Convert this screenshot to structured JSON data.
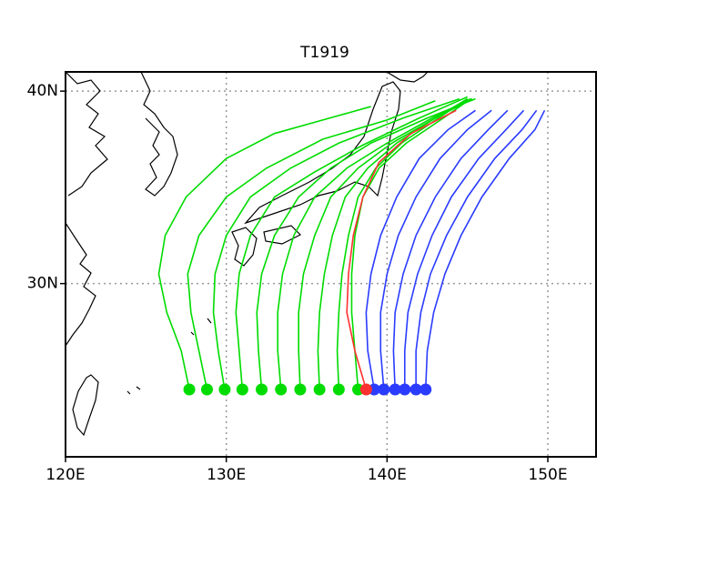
{
  "chart_data": {
    "type": "map",
    "title": "T1919",
    "xlim": [
      120,
      153
    ],
    "ylim": [
      21,
      41
    ],
    "xticks": [
      {
        "value": 120,
        "label": "120E"
      },
      {
        "value": 130,
        "label": "130E"
      },
      {
        "value": 140,
        "label": "140E"
      },
      {
        "value": 150,
        "label": "150E"
      }
    ],
    "yticks": [
      {
        "value": 30,
        "label": "30N"
      },
      {
        "value": 40,
        "label": "40N"
      }
    ],
    "grid": true,
    "series": [
      {
        "color": "#00dc00",
        "x": [
          127.7,
          127.2,
          126.3,
          125.8,
          126.2,
          127.5,
          130,
          133,
          136,
          139
        ],
        "values": [
          24.5,
          26.5,
          28.5,
          30.5,
          32.5,
          34.5,
          36.5,
          37.8,
          38.5,
          39.2
        ]
      },
      {
        "color": "#00dc00",
        "x": [
          128.8,
          128.3,
          127.8,
          127.6,
          128.3,
          130,
          132.5,
          136,
          140,
          143
        ],
        "values": [
          24.5,
          26.5,
          28.5,
          30.5,
          32.5,
          34.5,
          36,
          37.5,
          38.5,
          39.5
        ]
      },
      {
        "color": "#00dc00",
        "x": [
          129.9,
          129.5,
          129.2,
          129.3,
          130,
          131.5,
          134,
          137,
          141,
          144.5
        ],
        "values": [
          24.5,
          26.5,
          28.5,
          30.5,
          32.5,
          34.5,
          36,
          37.3,
          38.6,
          39.6
        ]
      },
      {
        "color": "#00dc00",
        "x": [
          131,
          130.8,
          130.6,
          130.8,
          131.5,
          133,
          135.5,
          138.5,
          142,
          145
        ],
        "values": [
          24.5,
          26.5,
          28.5,
          30.5,
          32.5,
          34.5,
          35.8,
          37.2,
          38.6,
          39.7
        ]
      },
      {
        "color": "#00dc00",
        "x": [
          132.2,
          132,
          131.9,
          132.2,
          133,
          134.5,
          136.5,
          139,
          142.5,
          145.5
        ],
        "values": [
          24.5,
          26.5,
          28.5,
          30.5,
          32.5,
          34.5,
          36,
          37.3,
          38.6,
          39.6
        ]
      },
      {
        "color": "#00dc00",
        "x": [
          133.4,
          133.2,
          133.2,
          133.5,
          134.2,
          135.5,
          137.5,
          140,
          142.8,
          145.2
        ],
        "values": [
          24.5,
          26.5,
          28.5,
          30.5,
          32.5,
          34.5,
          36,
          37.3,
          38.6,
          39.6
        ]
      },
      {
        "color": "#00dc00",
        "x": [
          134.6,
          134.5,
          134.5,
          134.8,
          135.5,
          136.5,
          138.2,
          140.3,
          143,
          145
        ],
        "values": [
          24.5,
          26.5,
          28.5,
          30.5,
          32.5,
          34.5,
          36,
          37.3,
          38.6,
          39.6
        ]
      },
      {
        "color": "#00dc00",
        "x": [
          135.8,
          135.7,
          135.8,
          136.1,
          136.6,
          137.4,
          138.8,
          140.6,
          143,
          145.3
        ],
        "values": [
          24.5,
          26.5,
          28.5,
          30.5,
          32.5,
          34.5,
          36,
          37.3,
          38.6,
          39.6
        ]
      },
      {
        "color": "#00dc00",
        "x": [
          137,
          136.9,
          137,
          137.2,
          137.6,
          138.2,
          139.3,
          140.9,
          143.2,
          145
        ],
        "values": [
          24.5,
          26.5,
          28.5,
          30.5,
          32.5,
          34.5,
          36,
          37.3,
          38.6,
          39.6
        ]
      },
      {
        "color": "#00dc00",
        "x": [
          138.2,
          138,
          137.8,
          137.8,
          138,
          138.5,
          139.5,
          141.2,
          143.5,
          145.2
        ],
        "values": [
          24.5,
          26.5,
          28.5,
          30.5,
          32.5,
          34.5,
          36,
          37.3,
          38.6,
          39.6
        ]
      },
      {
        "color": "#2a3cff",
        "x": [
          139.2,
          138.8,
          138.7,
          139,
          139.6,
          140.6,
          142,
          143.8,
          145.5
        ],
        "values": [
          24.5,
          26.5,
          28.5,
          30.5,
          32.5,
          34.5,
          36.5,
          38,
          39
        ]
      },
      {
        "color": "#2a3cff",
        "x": [
          139.8,
          139.6,
          139.6,
          140,
          140.7,
          141.8,
          143.3,
          145,
          146.5
        ],
        "values": [
          24.5,
          26.5,
          28.5,
          30.5,
          32.5,
          34.5,
          36.5,
          38,
          39
        ]
      },
      {
        "color": "#2a3cff",
        "x": [
          140.5,
          140.4,
          140.5,
          141,
          141.8,
          143,
          144.6,
          146.3,
          147.5
        ],
        "values": [
          24.5,
          26.5,
          28.5,
          30.5,
          32.5,
          34.5,
          36.5,
          38,
          39
        ]
      },
      {
        "color": "#2a3cff",
        "x": [
          141.1,
          141.1,
          141.3,
          141.9,
          142.8,
          144,
          145.7,
          147.4,
          148.5
        ],
        "values": [
          24.5,
          26.5,
          28.5,
          30.5,
          32.5,
          34.5,
          36.5,
          38,
          39
        ]
      },
      {
        "color": "#2a3cff",
        "x": [
          141.8,
          141.8,
          142.1,
          142.7,
          143.7,
          145,
          146.7,
          148.4,
          149.3
        ],
        "values": [
          24.5,
          26.5,
          28.5,
          30.5,
          32.5,
          34.5,
          36.5,
          38,
          39
        ]
      },
      {
        "color": "#2a3cff",
        "x": [
          142.4,
          142.5,
          142.9,
          143.6,
          144.6,
          145.9,
          147.6,
          149.2,
          149.8
        ],
        "values": [
          24.5,
          26.5,
          28.5,
          30.5,
          32.5,
          34.5,
          36.5,
          38,
          39
        ]
      },
      {
        "color": "#ff3030",
        "x": [
          138.7,
          138,
          137.5,
          137.6,
          137.9,
          138.5,
          139.5,
          141.5,
          144.3
        ],
        "values": [
          24.5,
          26.5,
          28.5,
          30.5,
          32.5,
          34.5,
          36.3,
          37.8,
          39
        ]
      }
    ]
  }
}
